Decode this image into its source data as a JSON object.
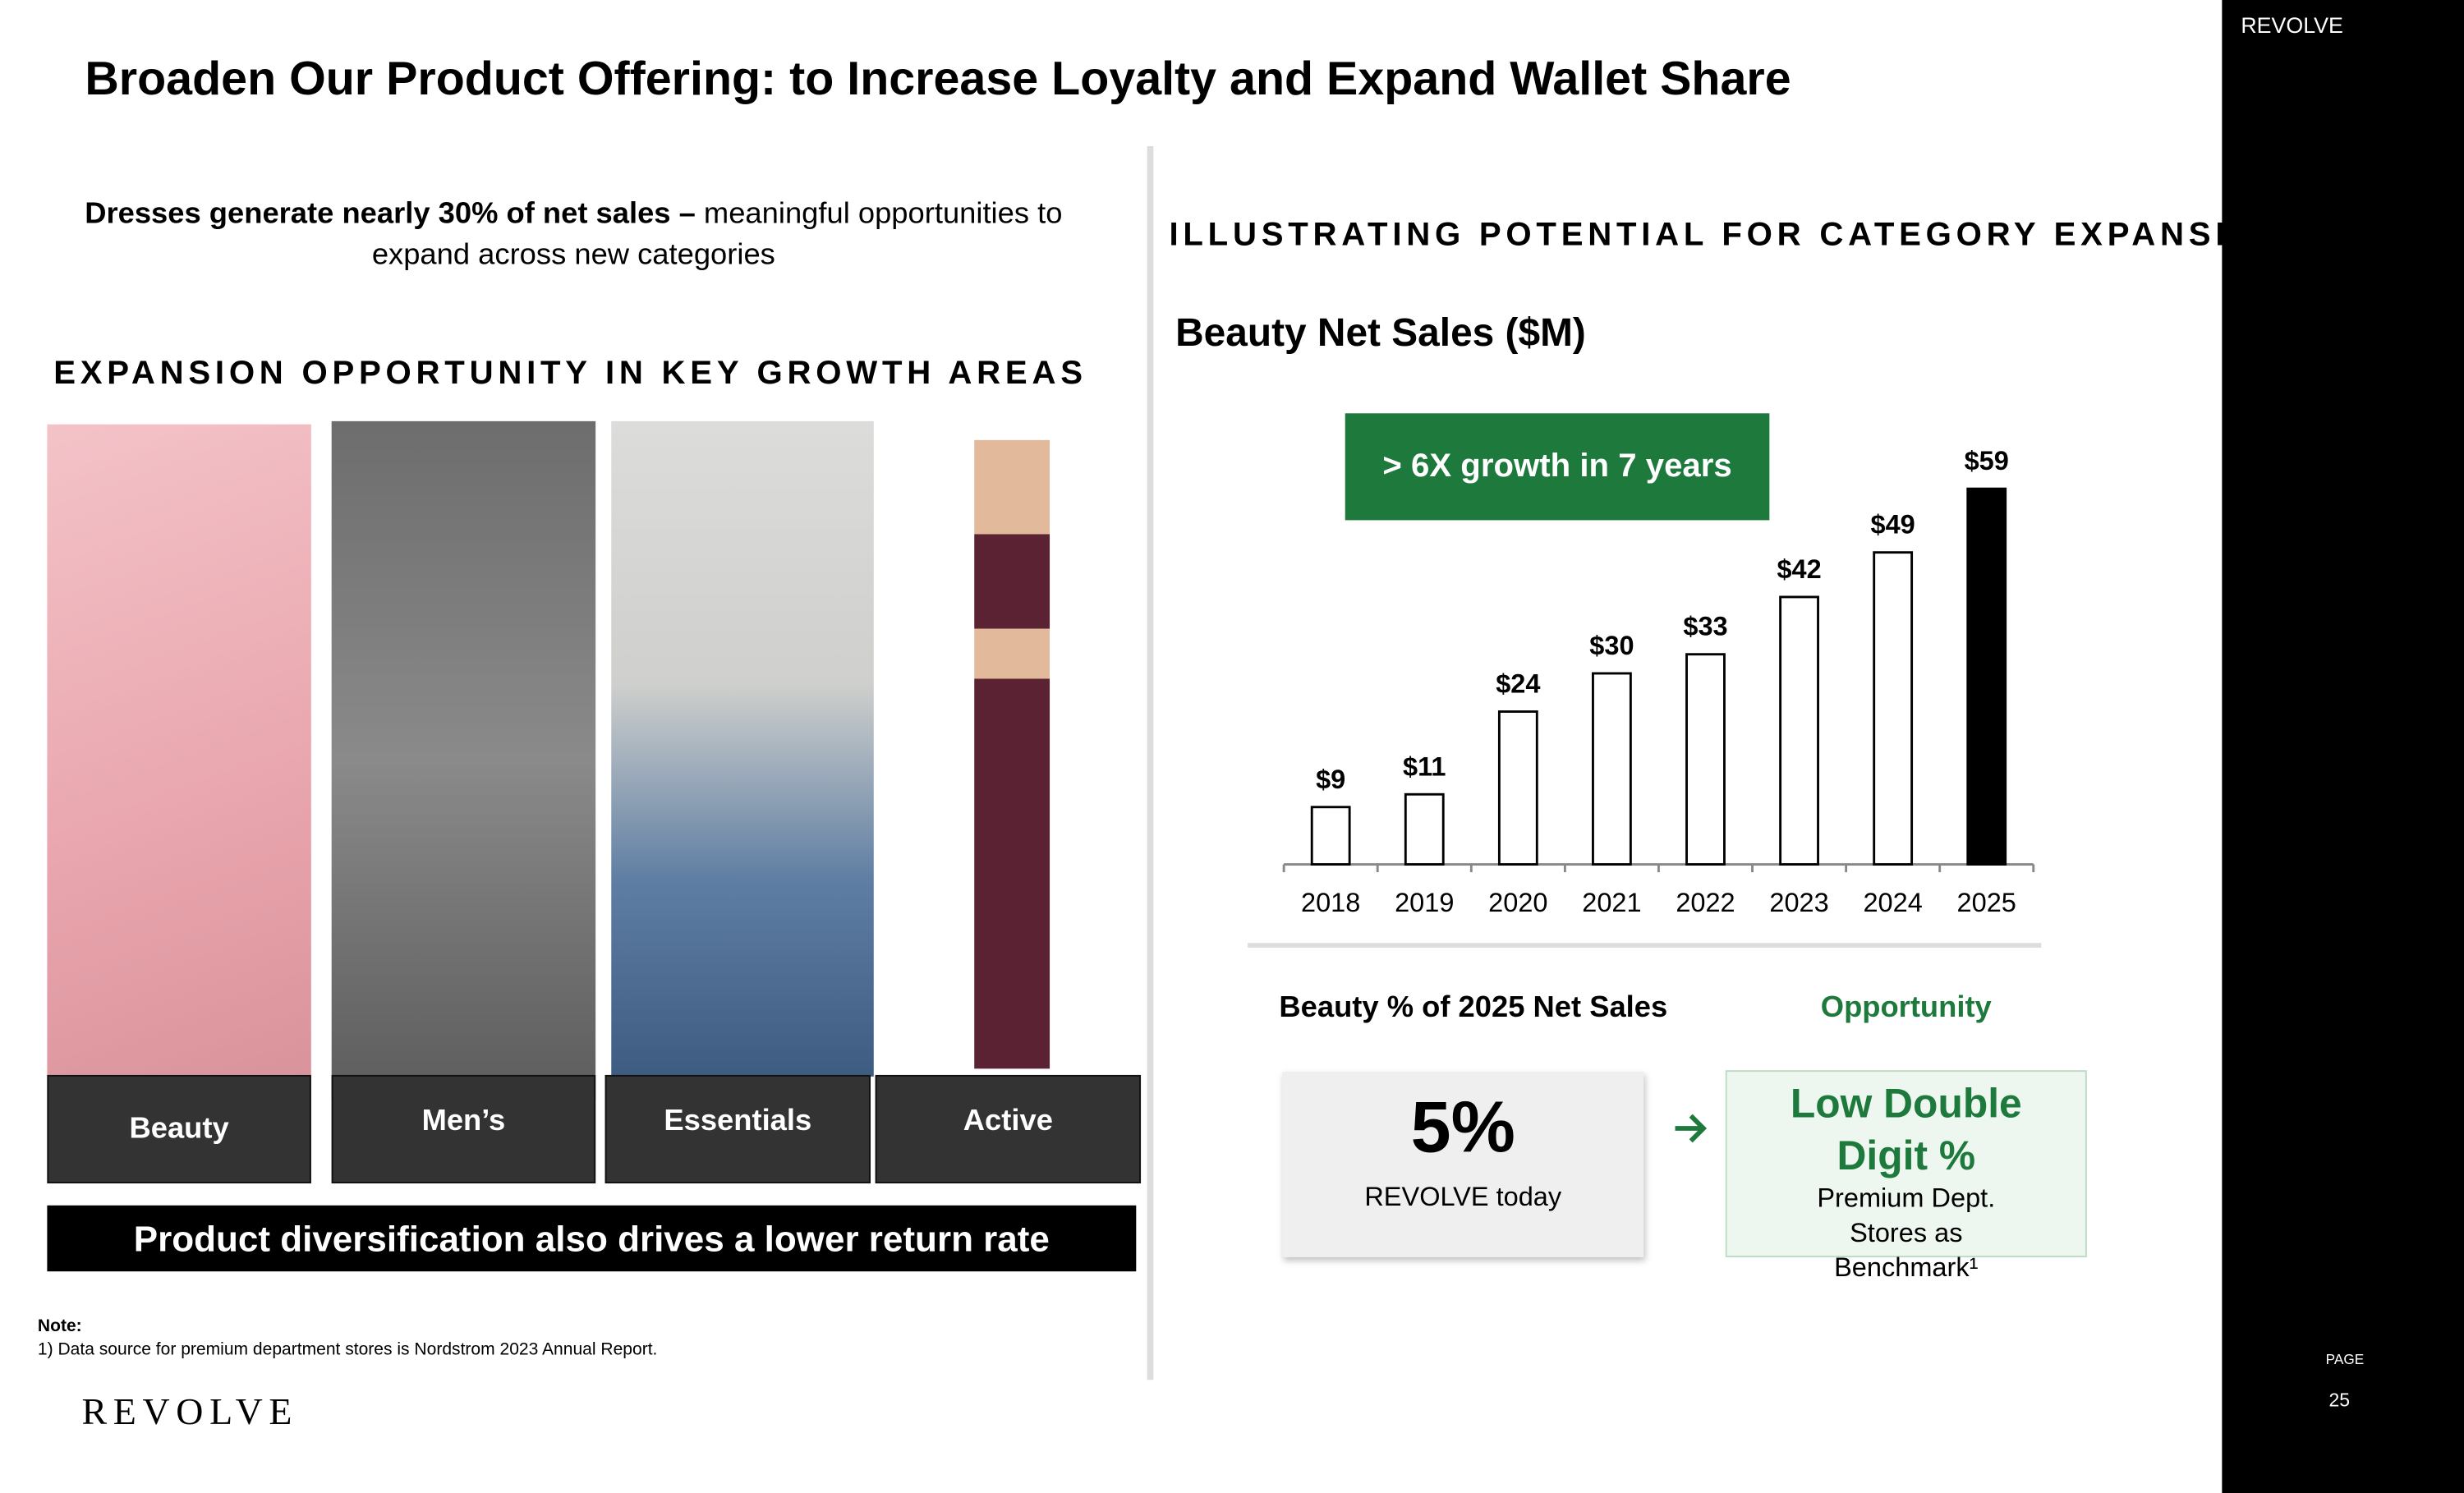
{
  "header": {
    "title": "Broaden Our Product Offering: to Increase Loyalty and Expand Wallet Share",
    "brand": "REVOLVE"
  },
  "left": {
    "intro_bold": "Dresses generate nearly 30% of net sales –",
    "intro_rest": "meaningful opportunities to expand across new categories",
    "heading": "EXPANSION OPPORTUNITY IN KEY GROWTH AREAS",
    "categories": [
      "Beauty",
      "Men’s",
      "Essentials",
      "Active"
    ],
    "banner": "Product diversification also drives a lower return rate"
  },
  "note": {
    "label": "Note:",
    "text": "1) Data source for premium department stores is Nordstrom 2023 Annual Report."
  },
  "footer": {
    "logo": "REVOLVE",
    "page_label": "PAGE",
    "page_number": "25"
  },
  "right": {
    "heading": "ILLUSTRATING POTENTIAL FOR CATEGORY EXPANSION",
    "callout": "> 6X growth in 7 years",
    "share_label": "Beauty % of 2025 Net Sales",
    "opportunity_label": "Opportunity",
    "today_value": "5%",
    "today_text": "REVOLVE today",
    "opportunity_value": "Low Double Digit %",
    "opportunity_text": "Premium Dept. Stores as Benchmark¹"
  },
  "chart_data": {
    "type": "bar",
    "title": "Beauty Net Sales ($M)",
    "categories": [
      "2018",
      "2019",
      "2020",
      "2021",
      "2022",
      "2023",
      "2024",
      "2025"
    ],
    "values": [
      9,
      11,
      24,
      30,
      33,
      42,
      49,
      59
    ],
    "value_labels": [
      "$9",
      "$11",
      "$24",
      "$30",
      "$33",
      "$42",
      "$49",
      "$59"
    ],
    "colors": [
      "#ffffff",
      "#ffffff",
      "#ffffff",
      "#ffffff",
      "#ffffff",
      "#ffffff",
      "#ffffff",
      "#000000"
    ],
    "edge_color": "#000000"
  }
}
